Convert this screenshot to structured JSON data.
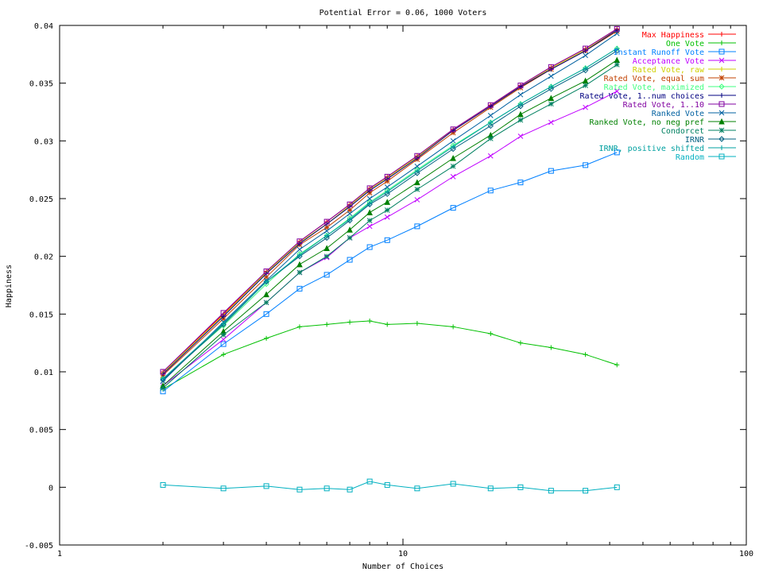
{
  "chart_data": {
    "type": "line",
    "title": "Potential Error = 0.06, 1000 Voters",
    "xlabel": "Number of Choices",
    "ylabel": "Happiness",
    "xscale": "log",
    "xlim": [
      1,
      100
    ],
    "ylim": [
      -0.005,
      0.04
    ],
    "x_ticks": [
      1,
      10,
      100
    ],
    "x_tick_labels": [
      "1",
      "10",
      "100"
    ],
    "y_ticks": [
      -0.005,
      0,
      0.005,
      0.01,
      0.015,
      0.02,
      0.025,
      0.03,
      0.035,
      0.04
    ],
    "y_tick_labels": [
      "-0.005",
      "0",
      "0.005",
      "0.01",
      "0.015",
      "0.02",
      "0.025",
      "0.03",
      "0.035",
      "0.04"
    ],
    "grid": false,
    "legend_position": "top-right",
    "x": [
      2,
      3,
      4,
      5,
      6,
      7,
      8,
      9,
      11,
      14,
      18,
      22,
      27,
      34,
      42
    ],
    "series": [
      {
        "name": "Max Happiness",
        "color": "#ff0000",
        "marker": "plus",
        "values": [
          0.01,
          0.015,
          0.0187,
          0.0213,
          0.023,
          0.0245,
          0.0259,
          0.0269,
          0.0287,
          0.031,
          0.0331,
          0.0348,
          0.0364,
          0.038,
          0.0397
        ]
      },
      {
        "name": "One Vote",
        "color": "#00c000",
        "marker": "plus",
        "values": [
          0.0085,
          0.0115,
          0.0129,
          0.0139,
          0.0141,
          0.0143,
          0.0144,
          0.0141,
          0.0142,
          0.0139,
          0.0133,
          0.0125,
          0.0121,
          0.0115,
          0.0106
        ]
      },
      {
        "name": "Instant Runoff Vote",
        "color": "#0080ff",
        "marker": "square",
        "values": [
          0.0083,
          0.0124,
          0.015,
          0.0172,
          0.0184,
          0.0197,
          0.0208,
          0.0214,
          0.0226,
          0.0242,
          0.0257,
          0.0264,
          0.0274,
          0.0279,
          0.029
        ]
      },
      {
        "name": "Acceptance Vote",
        "color": "#c000ff",
        "marker": "x",
        "values": [
          0.0088,
          0.0128,
          0.016,
          0.0186,
          0.0199,
          0.0216,
          0.0226,
          0.0234,
          0.0249,
          0.0269,
          0.0287,
          0.0304,
          0.0316,
          0.0329,
          0.0343
        ]
      },
      {
        "name": "Rated Vote, raw",
        "color": "#d0d000",
        "marker": "plus",
        "values": [
          0.0099,
          0.0149,
          0.0186,
          0.0212,
          0.0228,
          0.0244,
          0.0258,
          0.0268,
          0.0286,
          0.0309,
          0.033,
          0.0347,
          0.0363,
          0.0379,
          0.0396
        ]
      },
      {
        "name": "Rated Vote, equal sum",
        "color": "#c04000",
        "marker": "star",
        "values": [
          0.0097,
          0.0146,
          0.0182,
          0.021,
          0.0225,
          0.024,
          0.0255,
          0.0265,
          0.0284,
          0.0307,
          0.0329,
          0.0346,
          0.0362,
          0.0378,
          0.0395
        ]
      },
      {
        "name": "Rated Vote, maximized",
        "color": "#40ff80",
        "marker": "diamond",
        "values": [
          0.0094,
          0.014,
          0.0176,
          0.0202,
          0.0218,
          0.0233,
          0.0247,
          0.0257,
          0.0275,
          0.0296,
          0.0316,
          0.0332,
          0.0347,
          0.0363,
          0.038
        ]
      },
      {
        "name": "Rated Vote, 1..num choices",
        "color": "#000080",
        "marker": "plus",
        "values": [
          0.0098,
          0.0148,
          0.0185,
          0.0211,
          0.0228,
          0.0243,
          0.0257,
          0.0267,
          0.0285,
          0.0309,
          0.033,
          0.0347,
          0.0362,
          0.0378,
          0.0396
        ]
      },
      {
        "name": "Rated Vote, 1..10",
        "color": "#8000a0",
        "marker": "square",
        "values": [
          0.01,
          0.0151,
          0.0187,
          0.0213,
          0.023,
          0.0245,
          0.0259,
          0.0269,
          0.0287,
          0.031,
          0.0331,
          0.0348,
          0.0364,
          0.038,
          0.0397
        ]
      },
      {
        "name": "Ranked Vote",
        "color": "#0060a0",
        "marker": "x",
        "values": [
          0.0092,
          0.0143,
          0.0179,
          0.0206,
          0.0222,
          0.0237,
          0.025,
          0.026,
          0.0278,
          0.03,
          0.0322,
          0.034,
          0.0356,
          0.0374,
          0.0393
        ]
      },
      {
        "name": "Ranked Vote, no neg pref",
        "color": "#008000",
        "marker": "triangle",
        "values": [
          0.0088,
          0.0135,
          0.0167,
          0.0193,
          0.0207,
          0.0223,
          0.0238,
          0.0247,
          0.0264,
          0.0285,
          0.0305,
          0.0323,
          0.0337,
          0.0352,
          0.037
        ]
      },
      {
        "name": "Condorcet",
        "color": "#008060",
        "marker": "star",
        "values": [
          0.0086,
          0.0132,
          0.016,
          0.0186,
          0.02,
          0.0216,
          0.0231,
          0.024,
          0.0258,
          0.0278,
          0.0302,
          0.0318,
          0.0332,
          0.0348,
          0.0366
        ]
      },
      {
        "name": "IRNR",
        "color": "#006080",
        "marker": "diamond",
        "values": [
          0.0093,
          0.0141,
          0.0178,
          0.02,
          0.0216,
          0.0231,
          0.0245,
          0.0254,
          0.0272,
          0.0293,
          0.0313,
          0.033,
          0.0345,
          0.0361,
          0.0378
        ]
      },
      {
        "name": "IRNR, positive shifted",
        "color": "#00a0a0",
        "marker": "plus",
        "values": [
          0.0094,
          0.0142,
          0.0178,
          0.0201,
          0.0218,
          0.0232,
          0.0246,
          0.0256,
          0.0274,
          0.0295,
          0.0316,
          0.0332,
          0.0347,
          0.0363,
          0.038
        ]
      },
      {
        "name": "Random",
        "color": "#00b0c0",
        "marker": "square",
        "values": [
          0.0002,
          -0.0001,
          0.0001,
          -0.0002,
          -0.0001,
          -0.0002,
          0.0005,
          0.0002,
          -0.0001,
          0.0003,
          -0.0001,
          0.0,
          -0.0003,
          -0.0003,
          0.0
        ]
      }
    ]
  }
}
